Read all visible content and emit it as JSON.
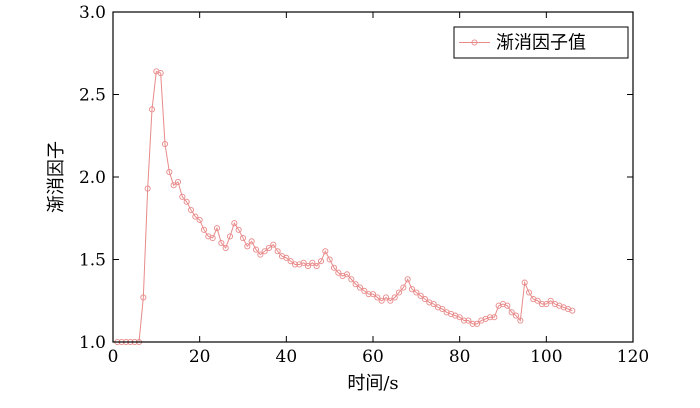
{
  "chart_data": {
    "type": "line",
    "title": "",
    "xlabel": "时间/s",
    "ylabel": "渐消因子",
    "xlim": [
      0,
      120
    ],
    "ylim": [
      1.0,
      3.0
    ],
    "xticks": [
      0,
      20,
      40,
      60,
      80,
      100,
      120
    ],
    "yticks": [
      1.0,
      1.5,
      2.0,
      2.5,
      3.0
    ],
    "xtick_labels": [
      "0",
      "20",
      "40",
      "60",
      "80",
      "100",
      "120"
    ],
    "ytick_labels": [
      "1.0",
      "1.5",
      "2.0",
      "2.5",
      "3.0"
    ],
    "grid": false,
    "legend_position": "top-right",
    "series": [
      {
        "name": "渐消因子值",
        "color": "#e88a8a",
        "marker": "open-circle",
        "x": [
          1,
          2,
          3,
          4,
          5,
          6,
          7,
          8,
          9,
          10,
          11,
          12,
          13,
          14,
          15,
          16,
          17,
          18,
          19,
          20,
          21,
          22,
          23,
          24,
          25,
          26,
          27,
          28,
          29,
          30,
          31,
          32,
          33,
          34,
          35,
          36,
          37,
          38,
          39,
          40,
          41,
          42,
          43,
          44,
          45,
          46,
          47,
          48,
          49,
          50,
          51,
          52,
          53,
          54,
          55,
          56,
          57,
          58,
          59,
          60,
          61,
          62,
          63,
          64,
          65,
          66,
          67,
          68,
          69,
          70,
          71,
          72,
          73,
          74,
          75,
          76,
          77,
          78,
          79,
          80,
          81,
          82,
          83,
          84,
          85,
          86,
          87,
          88,
          89,
          90,
          91,
          92,
          93,
          94,
          95,
          96,
          97,
          98,
          99,
          100,
          101,
          102,
          103,
          104,
          105,
          106
        ],
        "y": [
          1.0,
          1.0,
          1.0,
          1.0,
          1.0,
          1.0,
          1.27,
          1.93,
          2.41,
          2.64,
          2.63,
          2.2,
          2.03,
          1.95,
          1.97,
          1.88,
          1.85,
          1.8,
          1.76,
          1.74,
          1.68,
          1.64,
          1.63,
          1.69,
          1.6,
          1.57,
          1.64,
          1.72,
          1.68,
          1.63,
          1.58,
          1.61,
          1.56,
          1.53,
          1.55,
          1.57,
          1.59,
          1.55,
          1.52,
          1.51,
          1.49,
          1.47,
          1.47,
          1.48,
          1.46,
          1.48,
          1.46,
          1.49,
          1.55,
          1.5,
          1.45,
          1.42,
          1.4,
          1.41,
          1.38,
          1.35,
          1.33,
          1.31,
          1.29,
          1.29,
          1.27,
          1.25,
          1.27,
          1.25,
          1.27,
          1.3,
          1.33,
          1.38,
          1.32,
          1.3,
          1.28,
          1.26,
          1.24,
          1.23,
          1.21,
          1.2,
          1.18,
          1.17,
          1.16,
          1.15,
          1.13,
          1.13,
          1.11,
          1.11,
          1.13,
          1.14,
          1.15,
          1.15,
          1.22,
          1.23,
          1.22,
          1.18,
          1.16,
          1.13,
          1.36,
          1.3,
          1.26,
          1.25,
          1.23,
          1.23,
          1.25,
          1.23,
          1.22,
          1.21,
          1.2,
          1.19
        ]
      }
    ]
  }
}
